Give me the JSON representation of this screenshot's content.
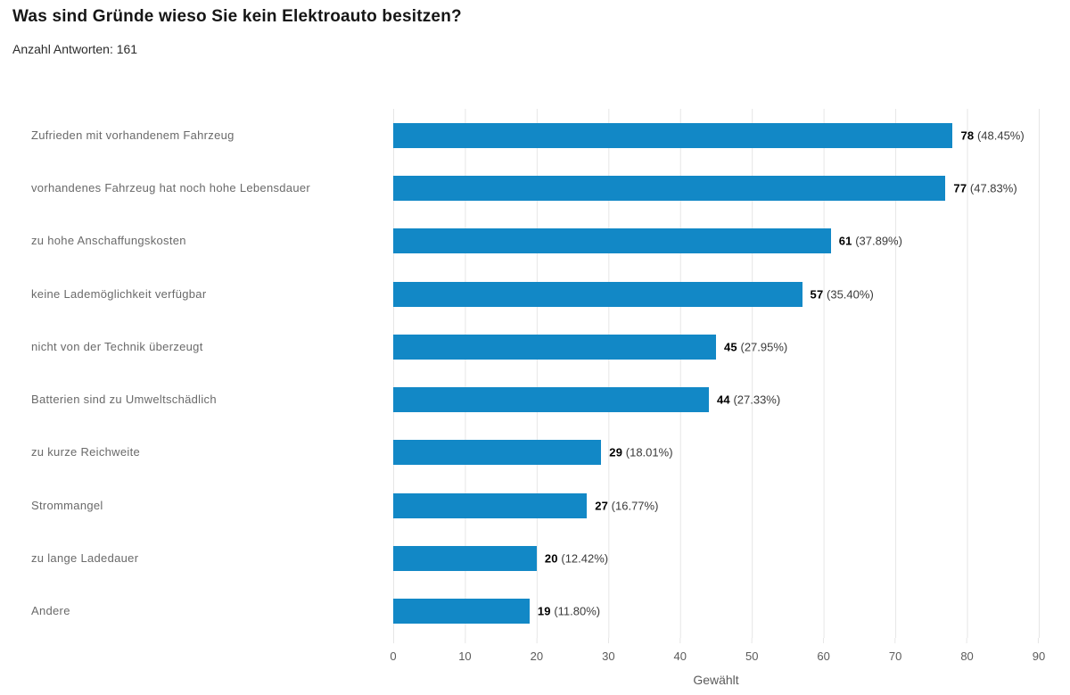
{
  "header": {
    "title": "Was sind Gründe wieso Sie kein Elektroauto besitzen?",
    "subtitle": "Anzahl Antworten: 161"
  },
  "chart_data": {
    "type": "bar",
    "orientation": "horizontal",
    "title": "Was sind Gründe wieso Sie kein Elektroauto besitzen?",
    "total_answers": 161,
    "categories": [
      "Zufrieden mit vorhandenem Fahrzeug",
      "vorhandenes Fahrzeug hat noch hohe Lebensdauer",
      "zu hohe Anschaffungskosten",
      "keine Lademöglichkeit verfügbar",
      "nicht von der Technik überzeugt",
      "Batterien sind zu Umweltschädlich",
      "zu kurze Reichweite",
      "Strommangel",
      "zu lange Ladedauer",
      "Andere"
    ],
    "values": [
      78,
      77,
      61,
      57,
      45,
      44,
      29,
      27,
      20,
      19
    ],
    "percents": [
      "48.45%",
      "47.83%",
      "37.89%",
      "35.40%",
      "27.95%",
      "27.33%",
      "18.01%",
      "16.77%",
      "12.42%",
      "11.80%"
    ],
    "xlabel": "Gewählt",
    "ylabel": "",
    "xlim": [
      0,
      90
    ],
    "xticks": [
      0,
      10,
      20,
      30,
      40,
      50,
      60,
      70,
      80,
      90
    ],
    "grid": true,
    "legend": false,
    "bar_color": "#1288c6",
    "grid_color": "#e6e6e6"
  }
}
